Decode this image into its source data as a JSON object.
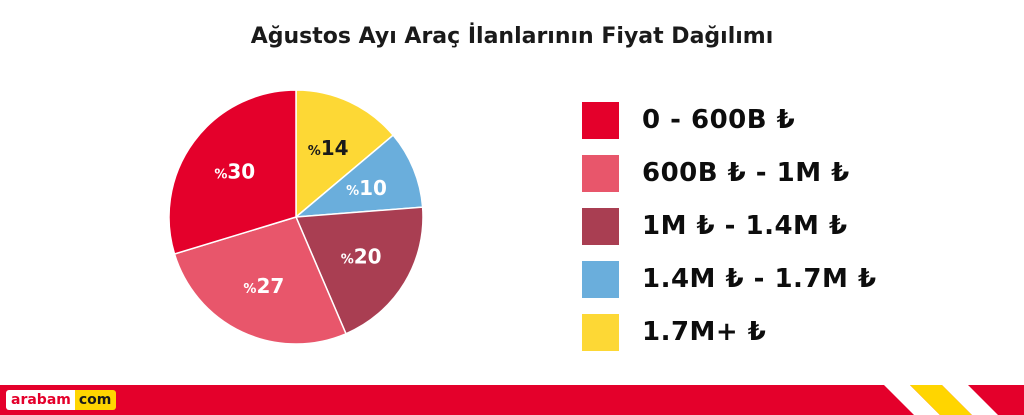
{
  "title": "Ağustos Ayı Araç İlanlarının Fiyat Dağılımı",
  "brand": {
    "name": "arabam",
    "suffix": "com"
  },
  "chart_data": {
    "type": "pie",
    "title": "Ağustos Ayı Araç İlanlarının Fiyat Dağılımı",
    "categories": [
      "0 - 600B ₺",
      "600B ₺ - 1M ₺",
      "1M ₺ - 1.4M ₺",
      "1.4M ₺ - 1.7M ₺",
      "1.7M+ ₺"
    ],
    "values": [
      30,
      27,
      20,
      10,
      14
    ],
    "value_labels": [
      "%30",
      "%27",
      "%20",
      "%10",
      "%14"
    ],
    "colors": [
      "#e4002b",
      "#e8566b",
      "#a93e52",
      "#6aaedc",
      "#fdd835"
    ],
    "start_order": [
      "1.7M+ ₺",
      "1.4M ₺ - 1.7M ₺",
      "1M ₺ - 1.4M ₺",
      "600B ₺ - 1M ₺",
      "0 - 600B ₺"
    ],
    "direction": "clockwise from top",
    "legend_position": "right"
  }
}
